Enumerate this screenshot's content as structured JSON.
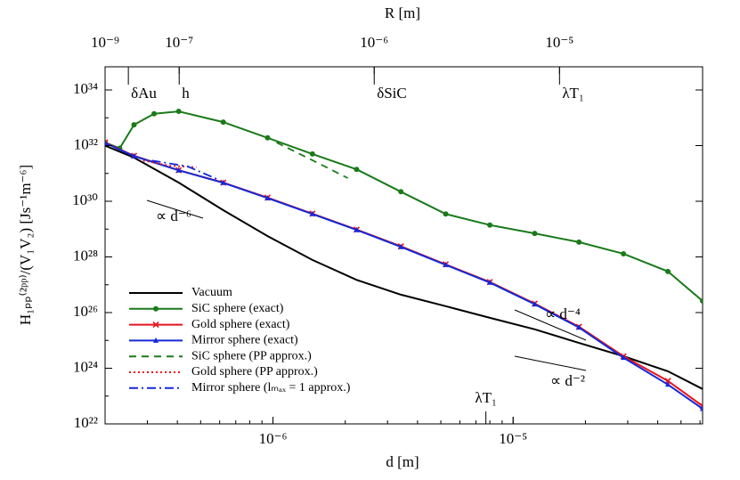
{
  "chart_data": {
    "type": "line",
    "log_x": true,
    "log_y": true,
    "xlabel": "d [m]",
    "ylabel": "H₁ₚₚ⁽²ᵖᵖ⁾/(V₁V₂) [Js⁻¹m⁻⁶]",
    "x2label": "R [m]",
    "xlim": [
      2e-07,
      6.15e-05
    ],
    "ylim": [
      1e+22,
      6.8e+34
    ],
    "xticks": [
      {
        "value": 1e-06,
        "label": "10⁻⁶"
      },
      {
        "value": 1e-05,
        "label": "10⁻⁵"
      }
    ],
    "yticks": [
      {
        "value": 1e+22,
        "label": "10²²"
      },
      {
        "value": 1e+24,
        "label": "10²⁴"
      },
      {
        "value": 1e+26,
        "label": "10²⁶"
      },
      {
        "value": 1e+28,
        "label": "10²⁸"
      },
      {
        "value": 1e+30,
        "label": "10³⁰"
      },
      {
        "value": 1e+32,
        "label": "10³²"
      },
      {
        "value": 1e+34,
        "label": "10³⁴"
      }
    ],
    "x2ticks": [
      {
        "value": 1e-09,
        "label": "10⁻⁹",
        "d": 2e-07
      },
      {
        "value": 1e-07,
        "label": "10⁻⁷",
        "d": 4.07e-07
      },
      {
        "value": 1e-06,
        "label": "10⁻⁶",
        "d": 2.64e-06
      },
      {
        "value": 1e-05,
        "label": "10⁻⁵",
        "d": 1.56e-05
      }
    ],
    "length_scales": [
      {
        "label": "δAu",
        "d": 2.5e-07,
        "edge": "top"
      },
      {
        "label": "h",
        "d": 4.07e-07,
        "edge": "top"
      },
      {
        "label": "δSiC",
        "d": 2.64e-06,
        "edge": "top"
      },
      {
        "label": "λT₁",
        "d": 1.56e-05,
        "edge": "top"
      },
      {
        "label": "λT₁",
        "d": 7.7e-06,
        "edge": "bottom"
      }
    ],
    "legend": "lower left",
    "annotations": [
      "∝ d⁻⁶",
      "∝ d⁻⁴",
      "∝ d⁻²"
    ],
    "series": [
      {
        "name": "Vacuum",
        "color": "#000000",
        "dash": "solid",
        "marker": "none",
        "x": [
          2e-07,
          2.64e-07,
          4.05e-07,
          6.21e-07,
          9.5e-07,
          1.46e-06,
          2.23e-06,
          3.41e-06,
          5.24e-06,
          8e-06,
          1.23e-05,
          1.88e-05,
          2.88e-05,
          4.41e-05,
          6.15e-05
        ],
        "values": [
          1e+32,
          3.7e+31,
          4.7e+30,
          4.8e+29,
          5.6e+28,
          7.8e+27,
          1.5e+27,
          4.4e+26,
          1.7e+26,
          6.5e+25,
          2.5e+25,
          8.1e+24,
          2.7e+24,
          7.8e+23,
          1.8e+23
        ]
      },
      {
        "name": "SiC sphere (exact)",
        "color": "#1a7a1a",
        "dash": "solid",
        "marker": "circle",
        "x": [
          2e-07,
          2.3e-07,
          2.64e-07,
          3.2e-07,
          4.05e-07,
          6.21e-07,
          9.5e-07,
          1.46e-06,
          2.23e-06,
          3.41e-06,
          5.24e-06,
          8e-06,
          1.23e-05,
          1.88e-05,
          2.88e-05,
          4.41e-05,
          6.15e-05
        ],
        "values": [
          1.3e+32,
          8e+31,
          5.6e+32,
          1.4e+33,
          1.7e+33,
          7e+32,
          1.9e+32,
          5e+31,
          1.4e+31,
          2.2e+30,
          3.5e+29,
          1.4e+29,
          7e+28,
          3.4e+28,
          1.3e+28,
          3e+27,
          2.6e+26
        ]
      },
      {
        "name": "Gold sphere (exact)",
        "color": "#e8141c",
        "dash": "solid",
        "marker": "x",
        "x": [
          2e-07,
          2.64e-07,
          4.05e-07,
          6.21e-07,
          9.5e-07,
          1.46e-06,
          2.23e-06,
          3.41e-06,
          5.24e-06,
          8e-06,
          1.23e-05,
          1.88e-05,
          2.88e-05,
          4.41e-05,
          6.15e-05
        ],
        "values": [
          1.3e+32,
          4.3e+31,
          1.3e+31,
          4.7e+30,
          1.35e+30,
          3.6e+29,
          9.6e+28,
          2.4e+28,
          5.4e+27,
          1.25e+27,
          2.1e+26,
          3.1e+25,
          2.7e+24,
          3.5e+23,
          4.4e+22
        ]
      },
      {
        "name": "Mirror sphere (exact)",
        "color": "#1428d8",
        "dash": "solid",
        "marker": "triangle",
        "x": [
          2e-07,
          2.64e-07,
          4.05e-07,
          6.21e-07,
          9.5e-07,
          1.46e-06,
          2.23e-06,
          3.41e-06,
          5.24e-06,
          8e-06,
          1.23e-05,
          1.88e-05,
          2.88e-05,
          4.41e-05,
          6.15e-05
        ],
        "values": [
          1.25e+32,
          4.2e+31,
          1.3e+31,
          4.6e+30,
          1.3e+30,
          3.5e+29,
          9.3e+28,
          2.3e+28,
          5.2e+27,
          1.2e+27,
          2e+26,
          2.9e+25,
          2.4e+24,
          2.6e+23,
          3.5e+22
        ]
      },
      {
        "name": "SiC sphere (PP approx.)",
        "color": "#1a7a1a",
        "dash": "dashed",
        "marker": "none",
        "x": [
          1.035e-06,
          1.46e-06,
          2.05e-06
        ],
        "values": [
          1.3e+32,
          3e+31,
          6.8e+30
        ]
      },
      {
        "name": "Gold sphere (PP approx.)",
        "color": "#e8141c",
        "dash": "dotted",
        "marker": "none",
        "x": [
          2.88e-07,
          3.72e-07,
          4.8e-07
        ],
        "values": [
          2.9e+31,
          1.9e+31,
          1.66e+31
        ]
      },
      {
        "name": "Mirror sphere (lₘₐₓ = 1 approx.)",
        "color": "#1428d8",
        "dash": "dashdot",
        "marker": "none",
        "x": [
          3.13e-07,
          4.41e-07,
          5.94e-07
        ],
        "values": [
          2.9e+31,
          1.8e+31,
          5.9e+30
        ]
      }
    ]
  }
}
